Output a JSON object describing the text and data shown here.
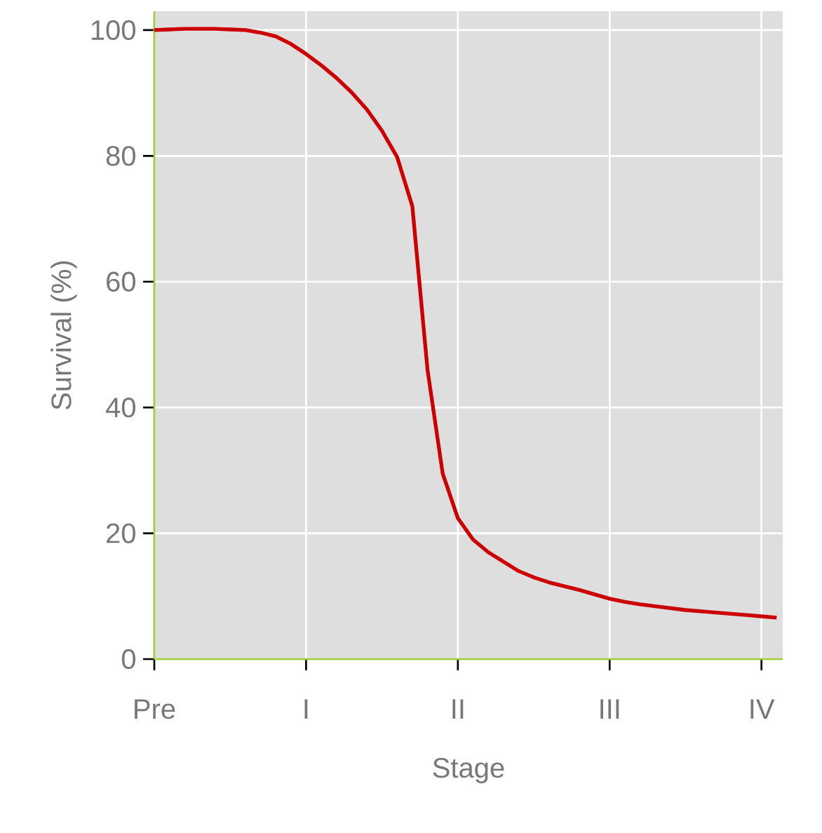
{
  "chart_data": {
    "type": "line",
    "xlabel": "Stage",
    "ylabel": "Survival (%)",
    "categories": [
      "Pre",
      null,
      null,
      null,
      null,
      null,
      null,
      null,
      null,
      null,
      "I",
      null,
      null,
      null,
      null,
      null,
      null,
      null,
      null,
      null,
      "II",
      null,
      null,
      null,
      null,
      null,
      null,
      null,
      null,
      null,
      "III",
      null,
      null,
      null,
      null,
      null,
      null,
      null,
      null,
      null,
      "IV",
      null
    ],
    "series": [
      {
        "color": "#cc0000",
        "values": [
          100,
          100.1,
          100.2,
          100.2,
          100.2,
          100.1,
          100,
          99.6,
          99,
          97.8,
          96.2,
          94.4,
          92.4,
          90.1,
          87.4,
          84,
          79.8,
          72,
          46,
          29.5,
          22.4,
          19,
          17,
          15.5,
          14,
          13,
          12.2,
          11.6,
          11,
          10.3,
          9.6,
          9.1,
          8.7,
          8.4,
          8.1,
          7.8,
          7.6,
          7.4,
          7.2,
          7,
          6.8,
          6.6
        ]
      }
    ],
    "ylim": [
      0,
      103
    ],
    "yticks": [
      0,
      20,
      40,
      60,
      80,
      100
    ],
    "grid": true,
    "marker": "none",
    "line_style": "solid"
  }
}
